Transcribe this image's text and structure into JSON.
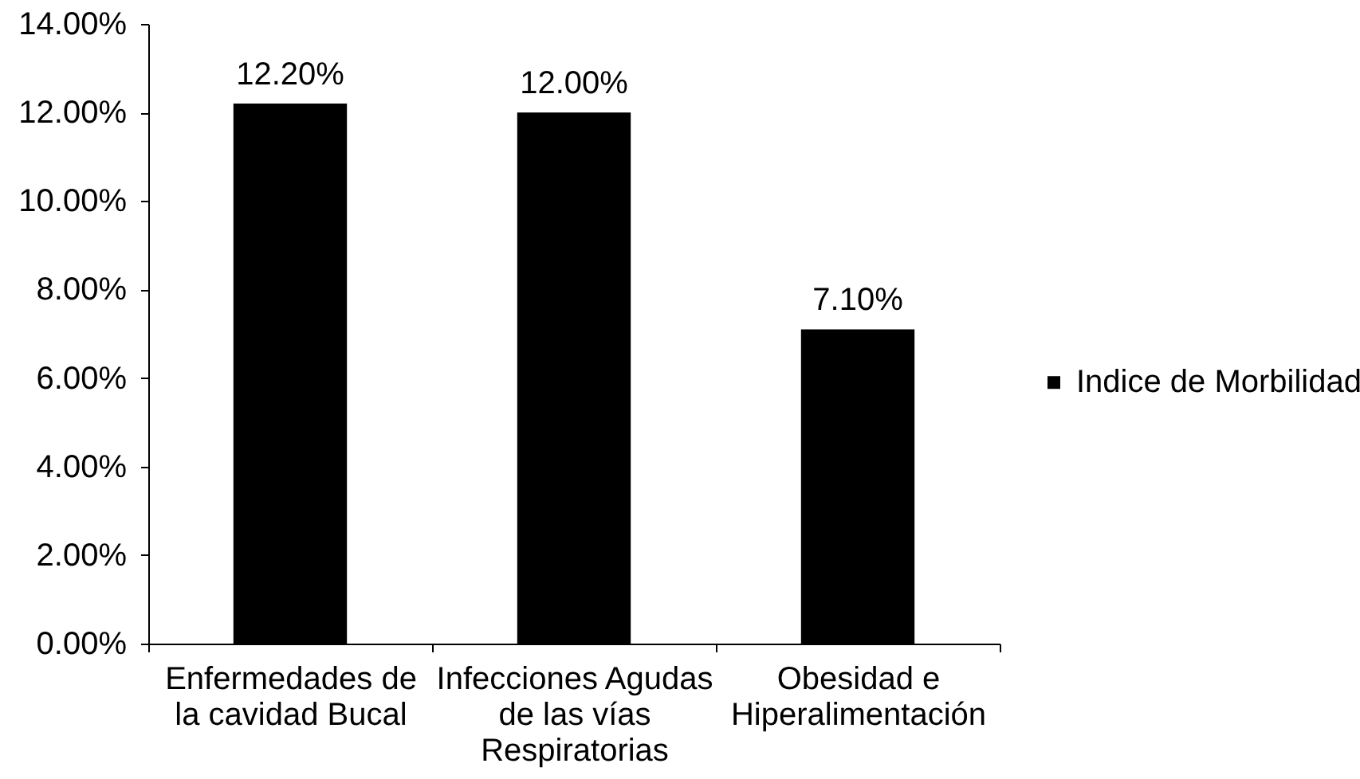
{
  "chart_data": {
    "type": "bar",
    "categories": [
      "Enfermedades de\nla cavidad Bucal",
      "Infecciones Agudas\nde las vías\nRespiratorias",
      "Obesidad e\nHiperalimentación"
    ],
    "series": [
      {
        "name": "Indice de Morbilidad",
        "color": "#000000",
        "values": [
          12.2,
          12.0,
          7.1
        ]
      }
    ],
    "value_labels": [
      "12.20%",
      "12.00%",
      "7.10%"
    ],
    "ylim": [
      0,
      14
    ],
    "yticks": [
      {
        "value": 0,
        "label": "0.00%"
      },
      {
        "value": 2,
        "label": "2.00%"
      },
      {
        "value": 4,
        "label": "4.00%"
      },
      {
        "value": 6,
        "label": "6.00%"
      },
      {
        "value": 8,
        "label": "8.00%"
      },
      {
        "value": 10,
        "label": "10.00%"
      },
      {
        "value": 12,
        "label": "12.00%"
      },
      {
        "value": 14,
        "label": "14.00%"
      }
    ],
    "grid": false,
    "legend": "right"
  }
}
